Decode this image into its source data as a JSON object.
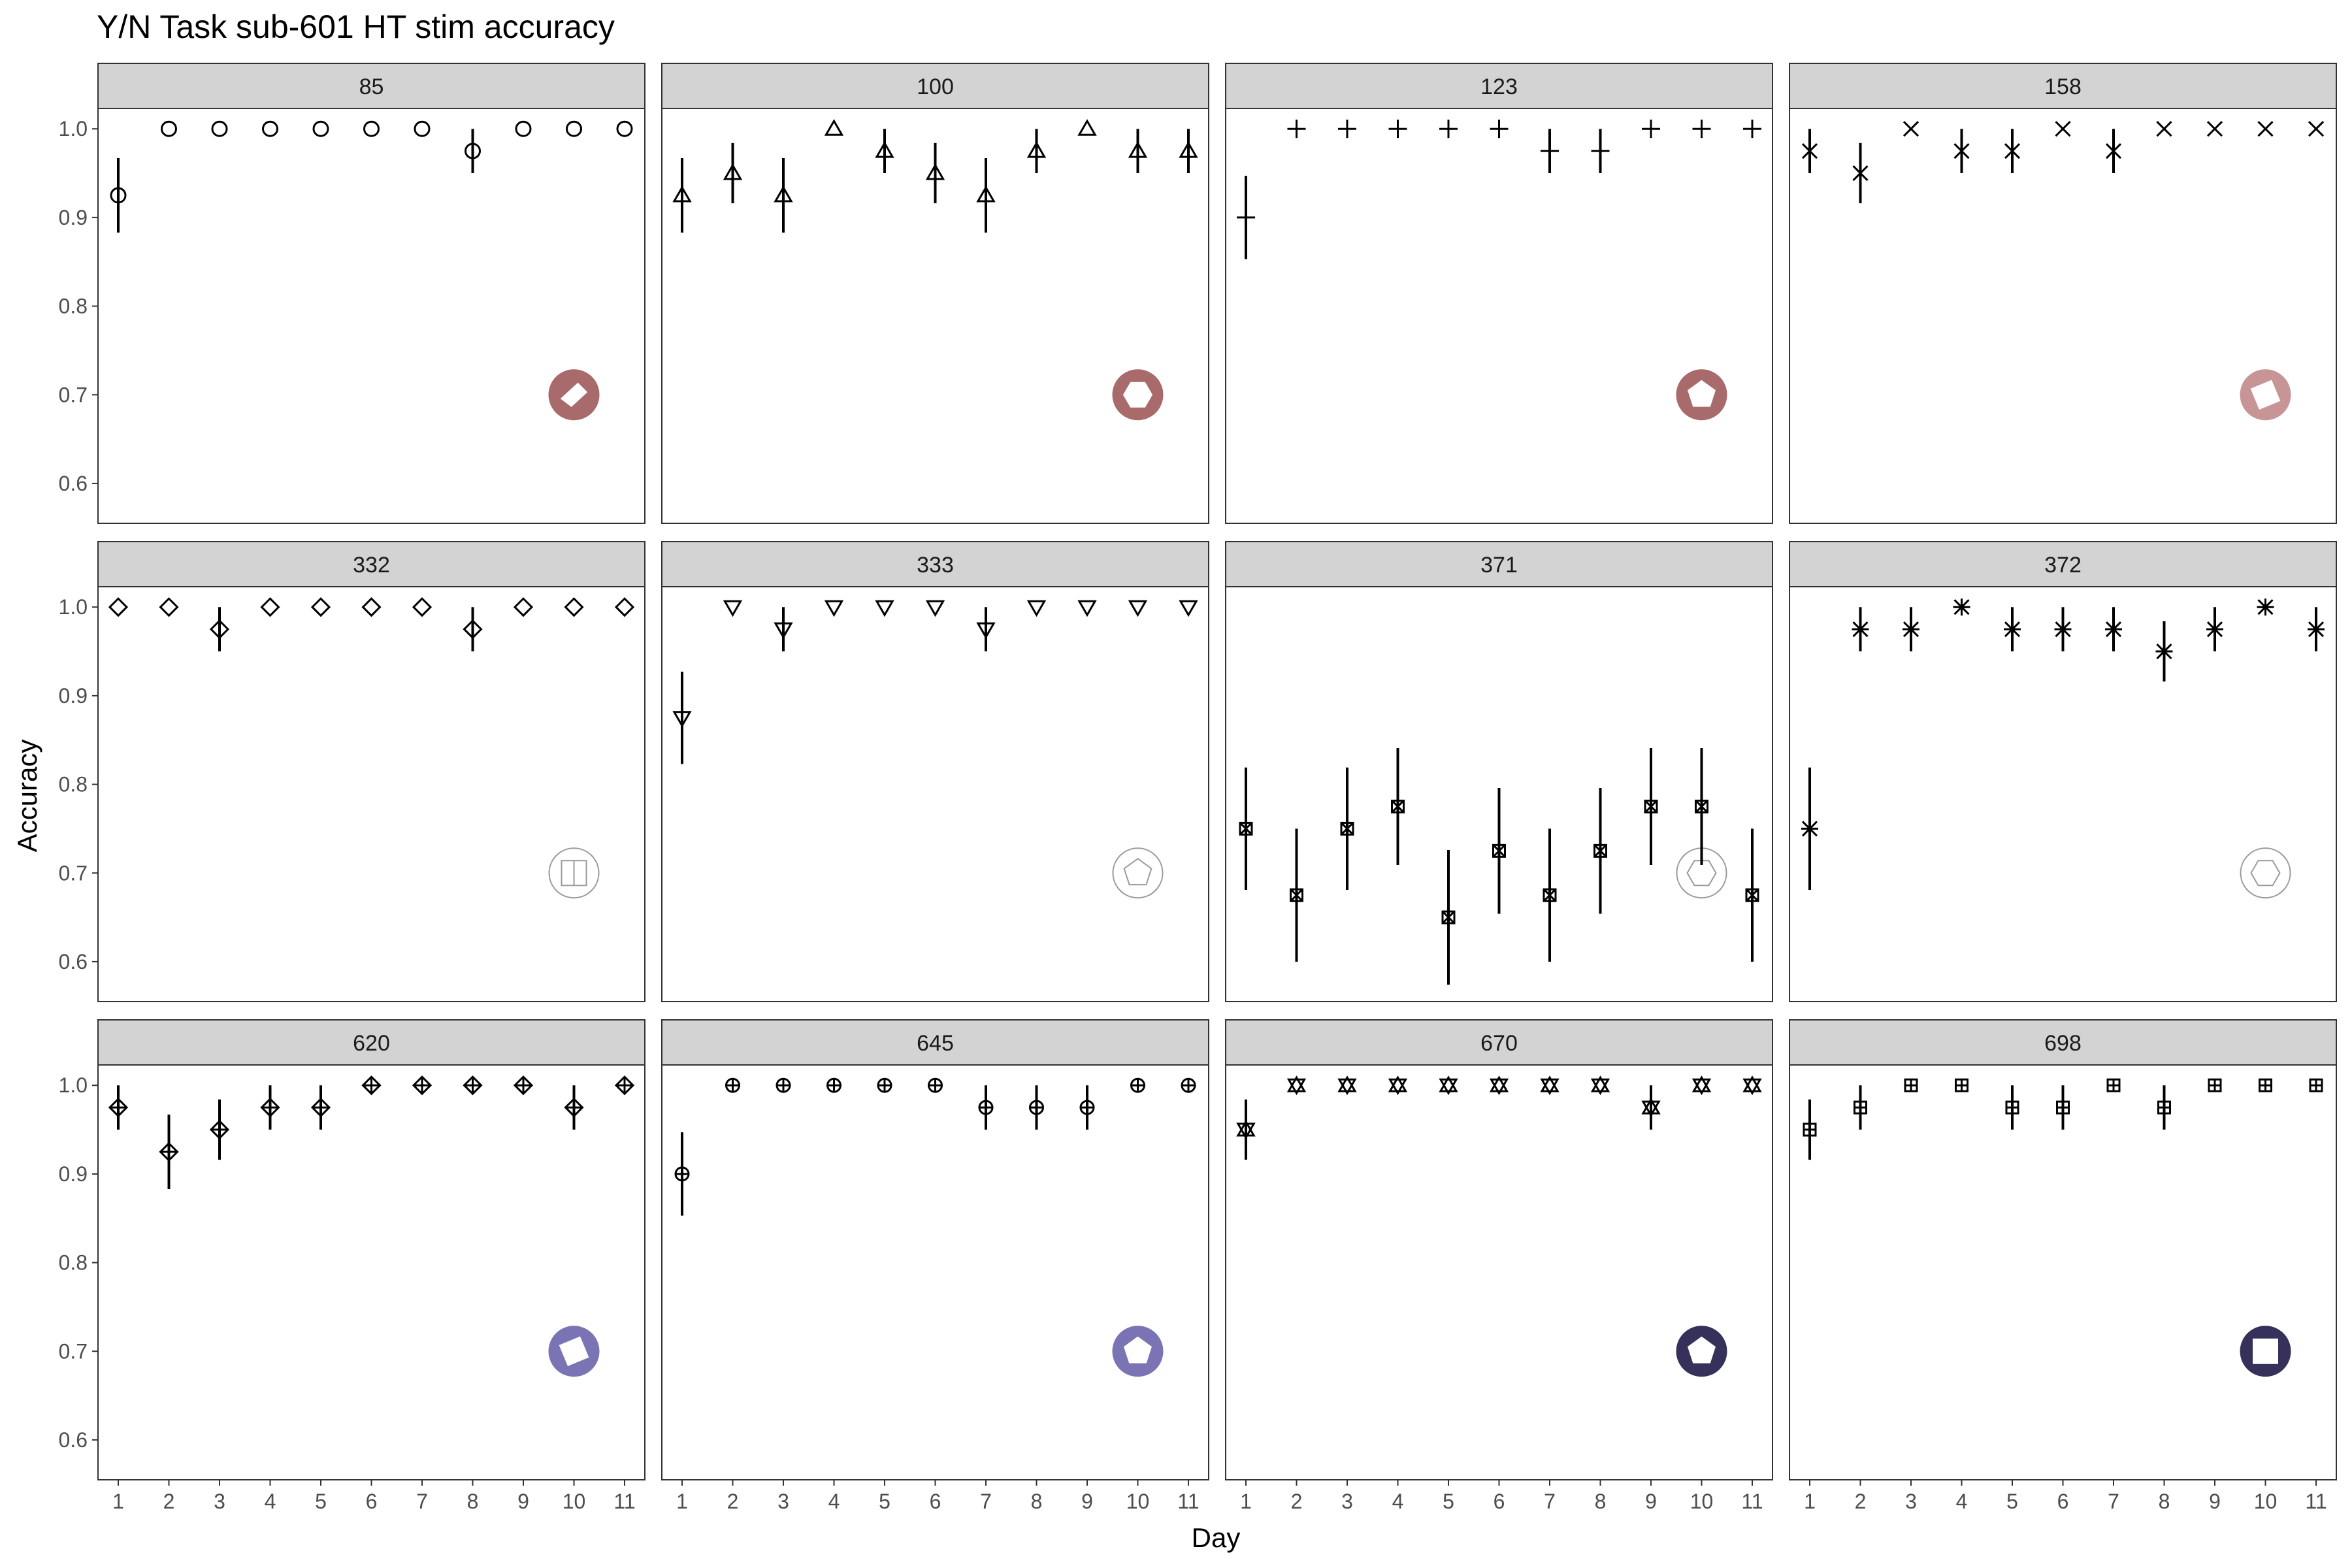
{
  "chart_data": {
    "type": "scatter",
    "title": "Y/N Task sub-601 HT stim accuracy",
    "xlabel": "Day",
    "ylabel": "Accuracy",
    "x_ticks": [
      1,
      2,
      3,
      4,
      5,
      6,
      7,
      8,
      9,
      10,
      11
    ],
    "y_ticks": [
      0.6,
      0.7,
      0.8,
      0.9,
      1.0
    ],
    "y_tick_labels": [
      "0.6",
      "0.7",
      "0.8",
      "0.9",
      "1.0"
    ],
    "xlim": [
      0.6,
      11.4
    ],
    "ylim": [
      0.555,
      1.023
    ],
    "grid": false,
    "legend": "none",
    "colors": {
      "panel_border": "#333333",
      "strip_fill": "#d3d3d3",
      "marker": "#000000",
      "tick_text": "#4d4d4d"
    },
    "panels": [
      {
        "label": "85",
        "marker": "circle",
        "stim_icon": {
          "shape": "kite",
          "color": "#a86a6a"
        },
        "y": [
          0.925,
          1.0,
          1.0,
          1.0,
          1.0,
          1.0,
          1.0,
          0.975,
          1.0,
          1.0,
          1.0
        ],
        "err": [
          0.042,
          0,
          0,
          0,
          0,
          0,
          0,
          0.025,
          0,
          0,
          0
        ]
      },
      {
        "label": "100",
        "marker": "triangle-up",
        "stim_icon": {
          "shape": "hexagon",
          "color": "#a86a6a"
        },
        "y": [
          0.925,
          0.95,
          0.925,
          1.0,
          0.975,
          0.95,
          0.925,
          0.975,
          1.0,
          0.975,
          0.975
        ],
        "err": [
          0.042,
          0.034,
          0.042,
          0,
          0.025,
          0.034,
          0.042,
          0.025,
          0,
          0.025,
          0.025
        ]
      },
      {
        "label": "123",
        "marker": "plus",
        "stim_icon": {
          "shape": "pentagon",
          "color": "#a86a6a"
        },
        "y": [
          0.9,
          1.0,
          1.0,
          1.0,
          1.0,
          1.0,
          0.975,
          0.975,
          1.0,
          1.0,
          1.0
        ],
        "err": [
          0.047,
          0,
          0,
          0,
          0,
          0,
          0.025,
          0.025,
          0,
          0,
          0
        ]
      },
      {
        "label": "158",
        "marker": "cross",
        "stim_icon": {
          "shape": "square-rotated",
          "color": "#c79595"
        },
        "y": [
          0.975,
          0.95,
          1.0,
          0.975,
          0.975,
          1.0,
          0.975,
          1.0,
          1.0,
          1.0,
          1.0
        ],
        "err": [
          0.025,
          0.034,
          0,
          0.025,
          0.025,
          0,
          0.025,
          0,
          0,
          0,
          0
        ]
      },
      {
        "label": "332",
        "marker": "diamond",
        "stim_icon": {
          "shape": "square",
          "color": "#ffffff"
        },
        "y": [
          1.0,
          1.0,
          0.975,
          1.0,
          1.0,
          1.0,
          1.0,
          0.975,
          1.0,
          1.0,
          1.0
        ],
        "err": [
          0,
          0,
          0.025,
          0,
          0,
          0,
          0,
          0.025,
          0,
          0,
          0
        ]
      },
      {
        "label": "333",
        "marker": "triangle-down",
        "stim_icon": {
          "shape": "pentagon",
          "color": "#ffffff"
        },
        "y": [
          0.875,
          1.0,
          0.975,
          1.0,
          1.0,
          1.0,
          0.975,
          1.0,
          1.0,
          1.0,
          1.0
        ],
        "err": [
          0.052,
          0,
          0.025,
          0,
          0,
          0,
          0.025,
          0,
          0,
          0,
          0
        ]
      },
      {
        "label": "371",
        "marker": "square-cross",
        "stim_icon": {
          "shape": "hexagon",
          "color": "#ffffff"
        },
        "y": [
          0.75,
          0.675,
          0.75,
          0.775,
          0.65,
          0.725,
          0.675,
          0.725,
          0.775,
          0.775,
          0.675
        ],
        "err": [
          0.069,
          0.075,
          0.069,
          0.066,
          0.076,
          0.071,
          0.075,
          0.071,
          0.066,
          0.066,
          0.075
        ]
      },
      {
        "label": "372",
        "marker": "asterisk",
        "stim_icon": {
          "shape": "hexagon",
          "color": "#ffffff"
        },
        "y": [
          0.75,
          0.975,
          0.975,
          1.0,
          0.975,
          0.975,
          0.975,
          0.95,
          0.975,
          1.0,
          0.975
        ],
        "err": [
          0.069,
          0.025,
          0.025,
          0,
          0.025,
          0.025,
          0.025,
          0.034,
          0.025,
          0,
          0.025
        ]
      },
      {
        "label": "620",
        "marker": "diamond-plus",
        "stim_icon": {
          "shape": "square-rotated",
          "color": "#7a74b4"
        },
        "y": [
          0.975,
          0.925,
          0.95,
          0.975,
          0.975,
          1.0,
          1.0,
          1.0,
          1.0,
          0.975,
          1.0
        ],
        "err": [
          0.025,
          0.042,
          0.034,
          0.025,
          0.025,
          0,
          0,
          0,
          0,
          0.025,
          0
        ]
      },
      {
        "label": "645",
        "marker": "circle-plus",
        "stim_icon": {
          "shape": "pentagon",
          "color": "#7a74b4"
        },
        "y": [
          0.9,
          1.0,
          1.0,
          1.0,
          1.0,
          1.0,
          0.975,
          0.975,
          0.975,
          1.0,
          1.0
        ],
        "err": [
          0.047,
          0,
          0,
          0,
          0,
          0,
          0.025,
          0.025,
          0.025,
          0,
          0
        ]
      },
      {
        "label": "670",
        "marker": "star-of-david",
        "stim_icon": {
          "shape": "pentagon",
          "color": "#35315a"
        },
        "y": [
          0.95,
          1.0,
          1.0,
          1.0,
          1.0,
          1.0,
          1.0,
          1.0,
          0.975,
          1.0,
          1.0
        ],
        "err": [
          0.034,
          0,
          0,
          0,
          0,
          0,
          0,
          0,
          0.025,
          0,
          0
        ]
      },
      {
        "label": "698",
        "marker": "square-plus",
        "stim_icon": {
          "shape": "square",
          "color": "#35315a"
        },
        "y": [
          0.95,
          0.975,
          1.0,
          1.0,
          0.975,
          0.975,
          1.0,
          0.975,
          1.0,
          1.0,
          1.0
        ],
        "err": [
          0.034,
          0.025,
          0,
          0,
          0.025,
          0.025,
          0,
          0.025,
          0,
          0,
          0
        ]
      }
    ]
  }
}
